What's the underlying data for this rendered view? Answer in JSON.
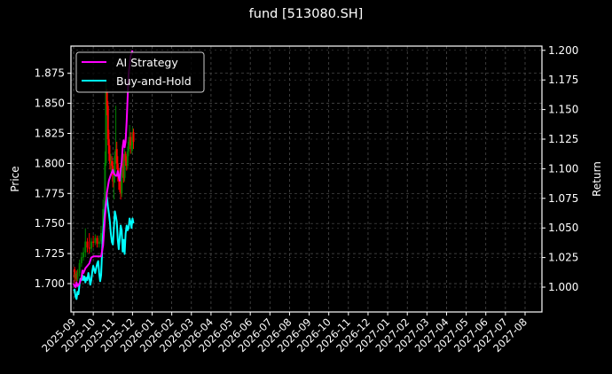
{
  "title": "fund [513080.SH]",
  "colors": {
    "background": "#000000",
    "axes": "#ffffff",
    "grid": "#555555",
    "ai_strategy": "#ff00ff",
    "buy_and_hold": "#00ffff",
    "candle_up": "#008000",
    "candle_down": "#ff0000"
  },
  "legend": {
    "items": [
      {
        "label": "AI Strategy",
        "color": "#ff00ff"
      },
      {
        "label": "Buy-and-Hold",
        "color": "#00ffff"
      }
    ]
  },
  "chart_data": {
    "type": "line",
    "title": "fund [513080.SH]",
    "xlabel": "",
    "ylabel_left": "Price",
    "ylabel_right": "Return",
    "x_ticks": [
      "2025-09",
      "2025-10",
      "2025-11",
      "2025-12",
      "2026-01",
      "2026-02",
      "2026-03",
      "2026-04",
      "2026-05",
      "2026-06",
      "2026-07",
      "2026-08",
      "2026-09",
      "2026-10",
      "2026-11",
      "2026-12",
      "2027-01",
      "2027-02",
      "2027-03",
      "2027-04",
      "2027-05",
      "2027-06",
      "2027-07",
      "2027-08"
    ],
    "y_ticks_left": [
      "1.700",
      "1.725",
      "1.750",
      "1.775",
      "1.800",
      "1.825",
      "1.850",
      "1.875"
    ],
    "y_ticks_right": [
      "1.000",
      "1.025",
      "1.050",
      "1.075",
      "1.100",
      "1.125",
      "1.150",
      "1.175",
      "1.200"
    ],
    "ylim_left": [
      1.68,
      1.89
    ],
    "ylim_right": [
      0.985,
      1.203
    ],
    "grid": true,
    "legend_position": "upper left",
    "series": [
      {
        "name": "AI Strategy",
        "axis": "right",
        "color": "#ff00ff",
        "x_month_offset": [
          0.0,
          0.05,
          0.1,
          0.15,
          0.2,
          0.3,
          0.4,
          0.45,
          0.5,
          0.6,
          0.7,
          0.8,
          0.9,
          1.0,
          1.1,
          1.2,
          1.3,
          1.4,
          1.5,
          1.6,
          1.7,
          1.8,
          1.9,
          2.0,
          2.05,
          2.1,
          2.15,
          2.2,
          2.25,
          2.3,
          2.35,
          2.4,
          2.45,
          2.5,
          2.55,
          2.6,
          2.65,
          2.7,
          2.75,
          2.8,
          2.9,
          3.0
        ],
        "values": [
          1.003,
          1.001,
          1.0,
          1.004,
          1.001,
          1.003,
          1.008,
          1.014,
          1.012,
          1.016,
          1.018,
          1.02,
          1.025,
          1.026,
          1.026,
          1.026,
          1.026,
          1.026,
          1.035,
          1.06,
          1.08,
          1.09,
          1.095,
          1.099,
          1.096,
          1.095,
          1.094,
          1.094,
          1.098,
          1.093,
          1.09,
          1.1,
          1.105,
          1.118,
          1.124,
          1.118,
          1.123,
          1.14,
          1.16,
          1.18,
          1.195,
          1.2
        ]
      },
      {
        "name": "Buy-and-Hold",
        "axis": "right",
        "color": "#00ffff",
        "x_month_offset": [
          0.0,
          0.05,
          0.1,
          0.15,
          0.2,
          0.25,
          0.3,
          0.35,
          0.4,
          0.45,
          0.5,
          0.55,
          0.6,
          0.65,
          0.7,
          0.75,
          0.8,
          0.85,
          0.9,
          0.95,
          1.0,
          1.05,
          1.1,
          1.15,
          1.2,
          1.25,
          1.3,
          1.35,
          1.4,
          1.45,
          1.5,
          1.55,
          1.6,
          1.65,
          1.7,
          1.75,
          1.8,
          1.85,
          1.9,
          1.95,
          2.0,
          2.05,
          2.1,
          2.15,
          2.2,
          2.25,
          2.3,
          2.35,
          2.4,
          2.45,
          2.5,
          2.55,
          2.6,
          2.65,
          2.7,
          2.75,
          2.8,
          2.85,
          2.9,
          2.95,
          3.0,
          3.05
        ],
        "values": [
          0.997,
          0.998,
          0.992,
          0.99,
          0.996,
          0.994,
          1.002,
          1.007,
          1.006,
          1.01,
          1.006,
          1.009,
          1.004,
          1.008,
          1.006,
          1.012,
          1.008,
          1.002,
          1.006,
          1.013,
          1.018,
          1.015,
          1.012,
          1.016,
          1.02,
          1.022,
          1.012,
          1.005,
          1.01,
          1.03,
          1.045,
          1.055,
          1.065,
          1.072,
          1.076,
          1.068,
          1.062,
          1.055,
          1.045,
          1.038,
          1.036,
          1.05,
          1.064,
          1.06,
          1.055,
          1.04,
          1.032,
          1.042,
          1.052,
          1.048,
          1.03,
          1.04,
          1.028,
          1.045,
          1.052,
          1.048,
          1.05,
          1.058,
          1.055,
          1.05,
          1.058,
          1.054
        ]
      }
    ],
    "candles": {
      "axis": "left",
      "x_month_offset": [
        0.05,
        0.1,
        0.15,
        0.2,
        0.3,
        0.4,
        0.5,
        0.6,
        0.7,
        0.8,
        0.9,
        1.0,
        1.1,
        1.2,
        1.3,
        1.4,
        1.5,
        1.6,
        1.65,
        1.7,
        1.75,
        1.8,
        1.85,
        1.9,
        1.95,
        2.0,
        2.05,
        2.1,
        2.15,
        2.2,
        2.25,
        2.3,
        2.35,
        2.4,
        2.45,
        2.5,
        2.55,
        2.6,
        2.65,
        2.7,
        2.75,
        2.8,
        2.85,
        2.9,
        2.95,
        3.0,
        3.05
      ],
      "open": [
        1.712,
        1.705,
        1.708,
        1.704,
        1.709,
        1.717,
        1.722,
        1.726,
        1.735,
        1.73,
        1.729,
        1.735,
        1.734,
        1.738,
        1.733,
        1.735,
        1.742,
        1.762,
        1.8,
        1.86,
        1.848,
        1.82,
        1.808,
        1.8,
        1.802,
        1.798,
        1.785,
        1.79,
        1.806,
        1.812,
        1.8,
        1.79,
        1.785,
        1.781,
        1.775,
        1.792,
        1.8,
        1.788,
        1.808,
        1.802,
        1.798,
        1.81,
        1.818,
        1.822,
        1.812,
        1.815,
        1.826
      ],
      "close": [
        1.705,
        1.708,
        1.704,
        1.709,
        1.717,
        1.722,
        1.726,
        1.735,
        1.73,
        1.729,
        1.735,
        1.734,
        1.738,
        1.733,
        1.735,
        1.742,
        1.762,
        1.8,
        1.86,
        1.848,
        1.82,
        1.808,
        1.8,
        1.802,
        1.798,
        1.785,
        1.79,
        1.806,
        1.812,
        1.8,
        1.79,
        1.785,
        1.781,
        1.775,
        1.792,
        1.8,
        1.788,
        1.808,
        1.802,
        1.798,
        1.81,
        1.818,
        1.822,
        1.812,
        1.815,
        1.826,
        1.818
      ],
      "high": [
        1.714,
        1.71,
        1.711,
        1.712,
        1.72,
        1.726,
        1.73,
        1.746,
        1.738,
        1.742,
        1.738,
        1.74,
        1.741,
        1.74,
        1.74,
        1.748,
        1.77,
        1.81,
        1.87,
        1.862,
        1.852,
        1.828,
        1.815,
        1.808,
        1.806,
        1.802,
        1.795,
        1.81,
        1.848,
        1.818,
        1.806,
        1.796,
        1.79,
        1.786,
        1.798,
        1.806,
        1.808,
        1.812,
        1.81,
        1.806,
        1.814,
        1.822,
        1.832,
        1.826,
        1.822,
        1.83,
        1.829
      ],
      "low": [
        1.7,
        1.702,
        1.701,
        1.702,
        1.706,
        1.714,
        1.719,
        1.722,
        1.726,
        1.725,
        1.726,
        1.73,
        1.732,
        1.73,
        1.73,
        1.733,
        1.74,
        1.76,
        1.798,
        1.84,
        1.815,
        1.802,
        1.795,
        1.792,
        1.792,
        1.78,
        1.77,
        1.784,
        1.8,
        1.795,
        1.785,
        1.778,
        1.776,
        1.77,
        1.772,
        1.788,
        1.784,
        1.785,
        1.798,
        1.794,
        1.795,
        1.806,
        1.815,
        1.808,
        1.808,
        1.81,
        1.812
      ]
    }
  }
}
